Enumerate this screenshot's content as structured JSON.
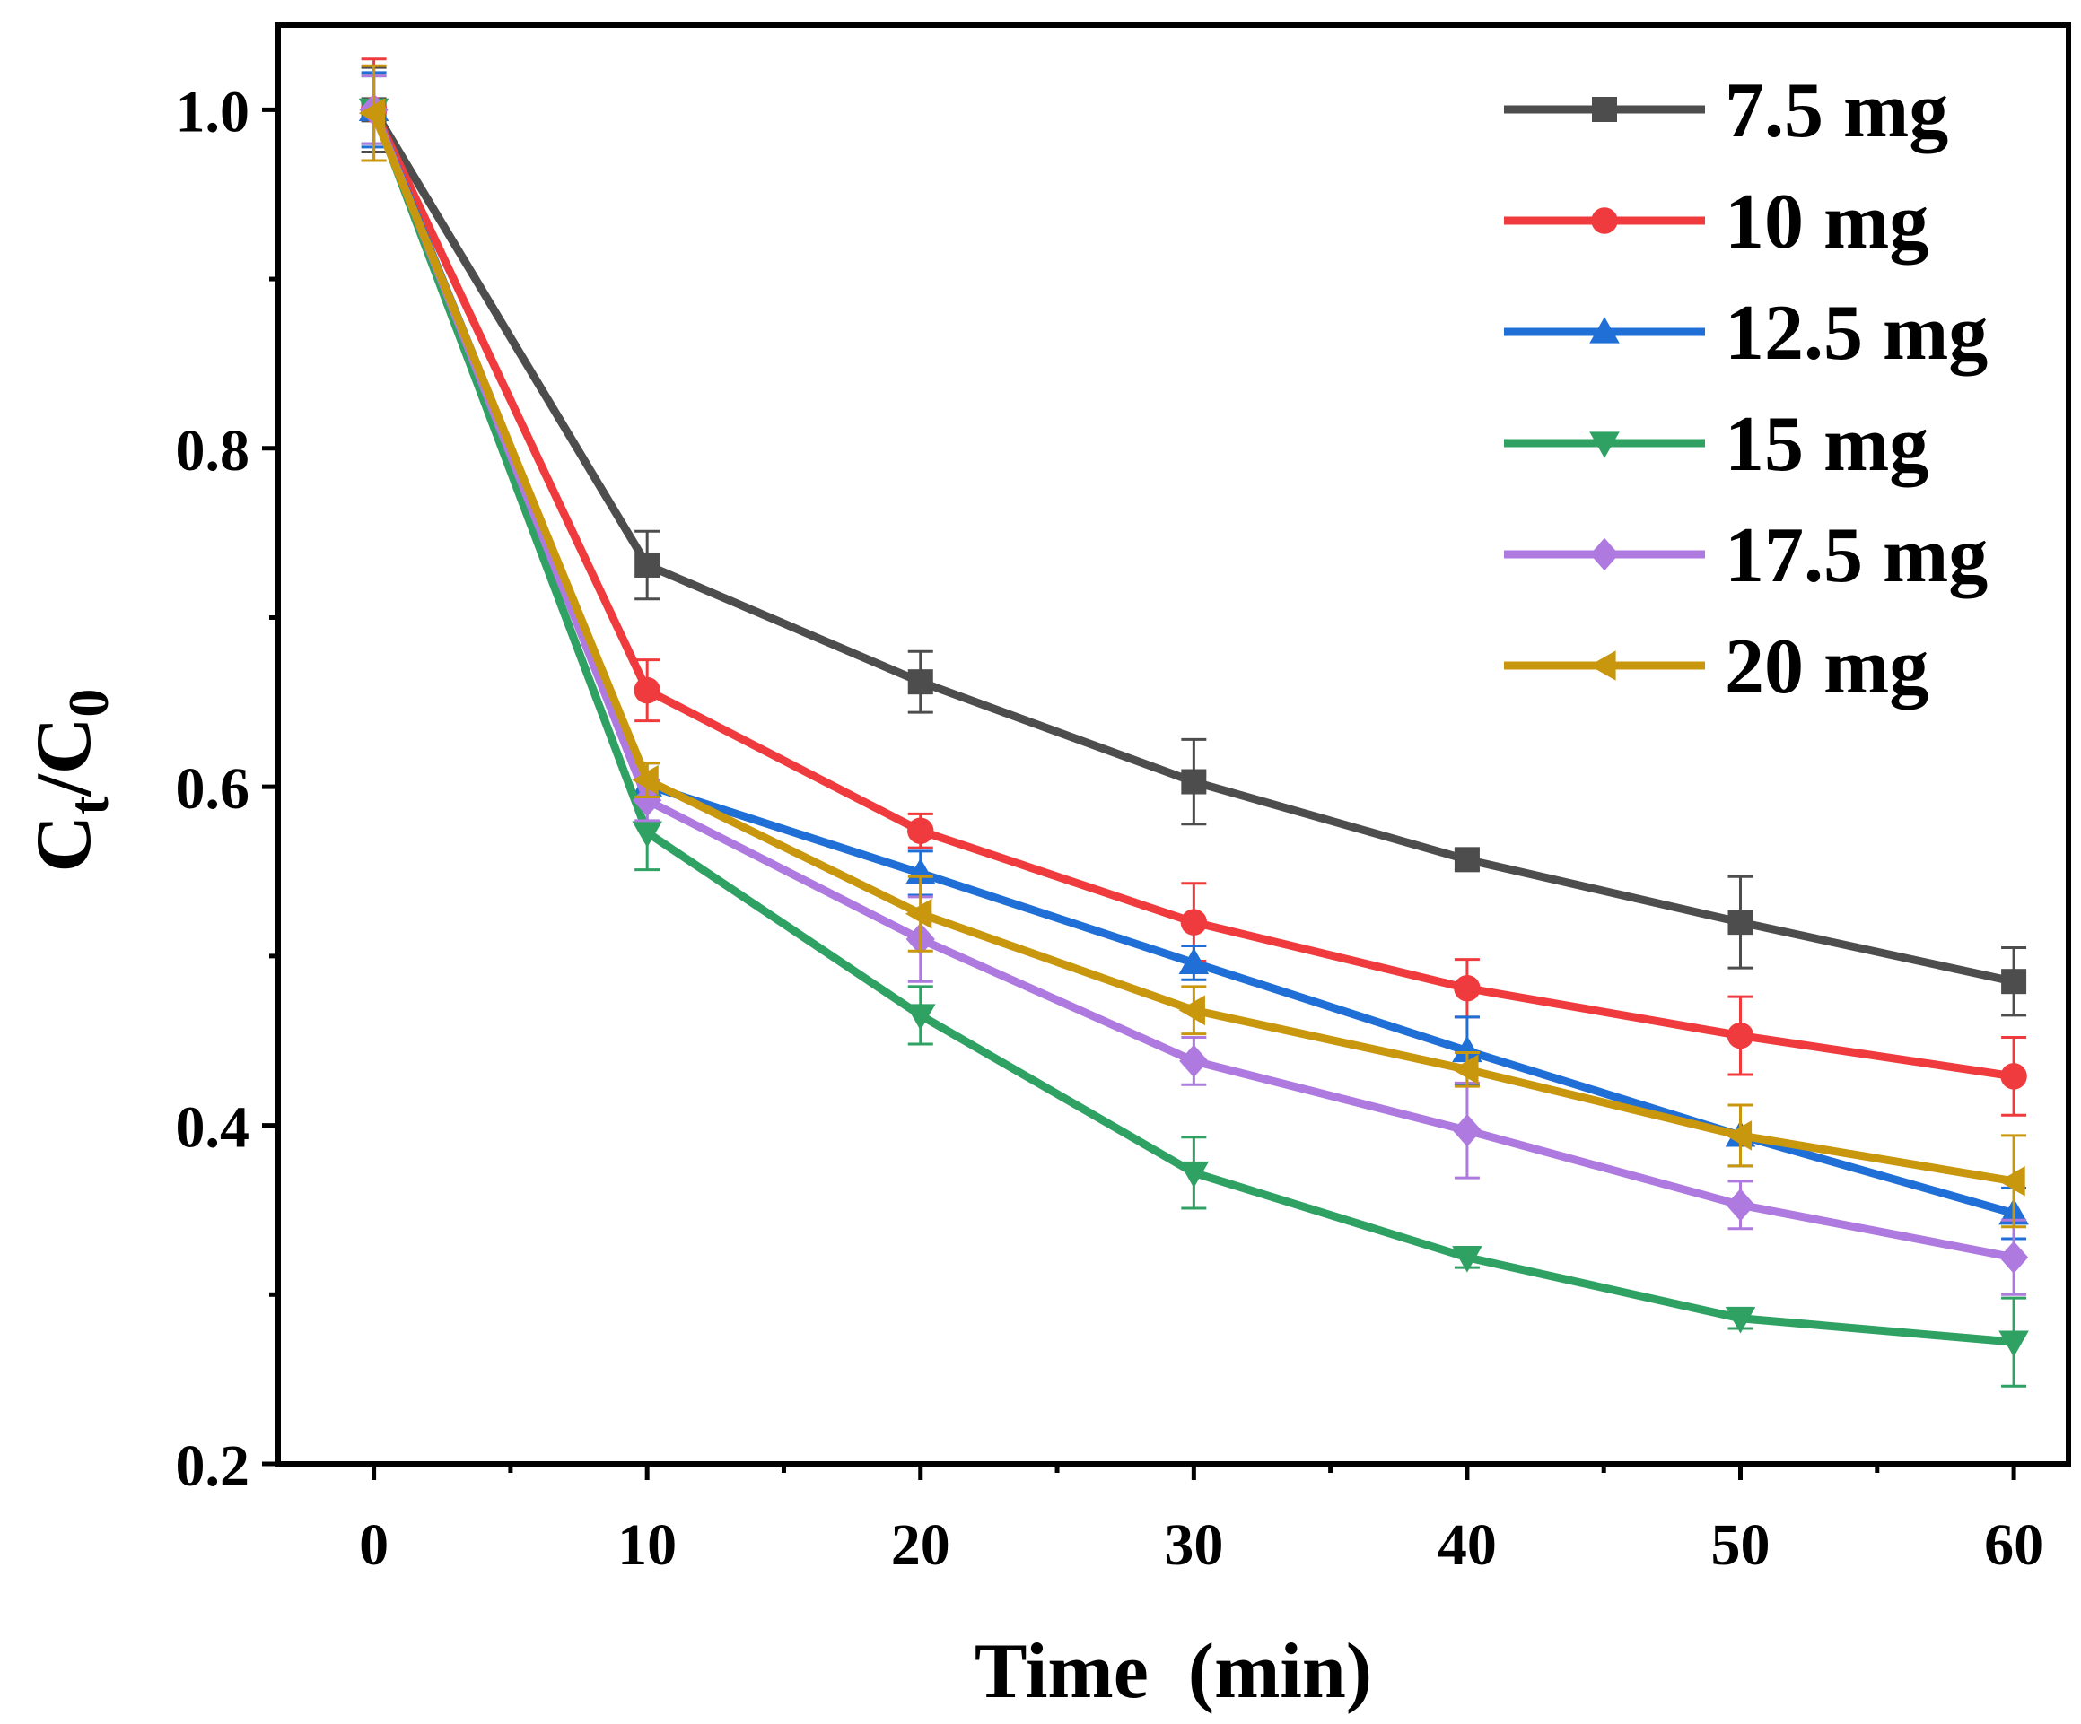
{
  "chart_data": {
    "type": "line",
    "title": "",
    "xlabel": "Time  (min)",
    "ylabel": "C",
    "ylabel_sub1": "t",
    "ylabel_mid": "/C",
    "ylabel_sub2": "0",
    "xlim": [
      -3.5,
      62
    ],
    "ylim": [
      0.2,
      1.05
    ],
    "xticks": [
      0,
      10,
      20,
      30,
      40,
      50,
      60
    ],
    "xtick_labels": [
      "0",
      "10",
      "20",
      "30",
      "40",
      "50",
      "60"
    ],
    "yticks": [
      0.2,
      0.4,
      0.6,
      0.8,
      1.0
    ],
    "ytick_labels": [
      "0.2",
      "0.4",
      "0.6",
      "0.8",
      "1.0"
    ],
    "x": [
      0,
      10,
      20,
      30,
      40,
      50,
      60
    ],
    "legend_position": "top-right",
    "series": [
      {
        "name": "7.5 mg",
        "color": "#4d4d4d",
        "marker": "square",
        "values": [
          1.0,
          0.731,
          0.662,
          0.603,
          0.557,
          0.52,
          0.485
        ],
        "errors": [
          0.025,
          0.02,
          0.018,
          0.025,
          0.006,
          0.027,
          0.02
        ]
      },
      {
        "name": "10 mg",
        "color": "#ef3b3d",
        "marker": "circle",
        "values": [
          1.0,
          0.657,
          0.574,
          0.52,
          0.481,
          0.453,
          0.429
        ],
        "errors": [
          0.03,
          0.018,
          0.01,
          0.023,
          0.017,
          0.023,
          0.023
        ]
      },
      {
        "name": "12.5 mg",
        "color": "#1f6fd6",
        "marker": "triangle-up",
        "values": [
          1.0,
          0.601,
          0.549,
          0.496,
          0.444,
          0.394,
          0.348
        ],
        "errors": [
          0.022,
          0.013,
          0.013,
          0.01,
          0.02,
          0.018,
          0.015
        ]
      },
      {
        "name": "15 mg",
        "color": "#2ea163",
        "marker": "triangle-down",
        "values": [
          1.0,
          0.573,
          0.465,
          0.372,
          0.322,
          0.286,
          0.272
        ],
        "errors": [
          0.02,
          0.022,
          0.017,
          0.021,
          0.006,
          0.006,
          0.026
        ]
      },
      {
        "name": "17.5 mg",
        "color": "#ae7ae0",
        "marker": "diamond",
        "values": [
          1.0,
          0.592,
          0.51,
          0.438,
          0.397,
          0.353,
          0.322
        ],
        "errors": [
          0.02,
          0.012,
          0.025,
          0.014,
          0.028,
          0.014,
          0.022
        ]
      },
      {
        "name": "20 mg",
        "color": "#c9970e",
        "marker": "triangle-left",
        "values": [
          0.998,
          0.604,
          0.525,
          0.468,
          0.433,
          0.394,
          0.367
        ],
        "errors": [
          0.028,
          0.01,
          0.022,
          0.014,
          0.01,
          0.018,
          0.027
        ]
      }
    ]
  }
}
